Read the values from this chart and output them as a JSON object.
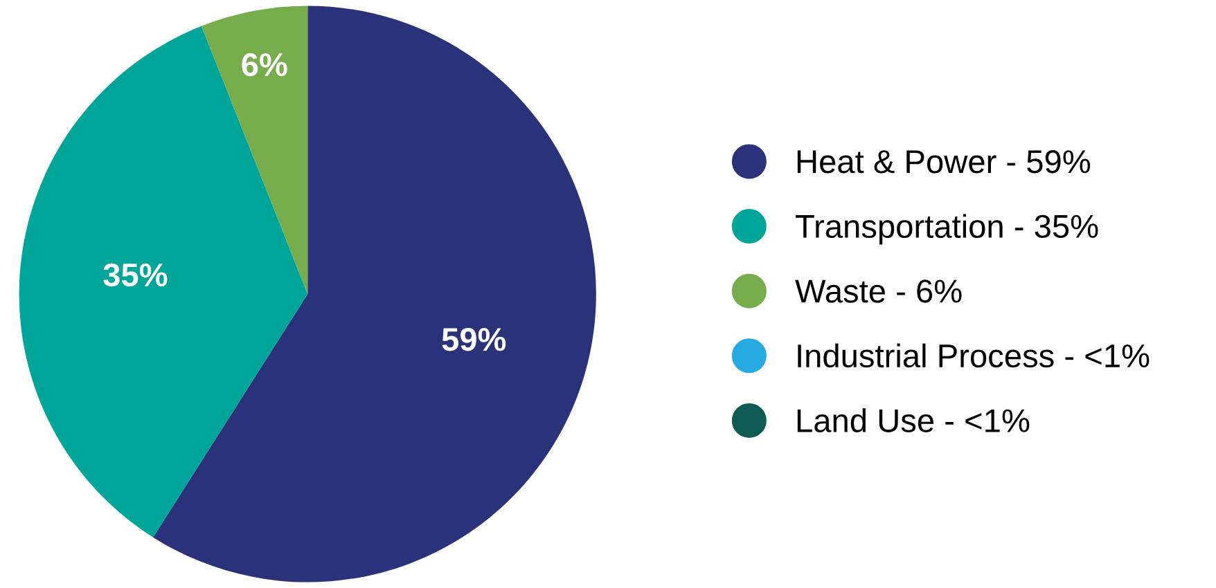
{
  "chart_data": {
    "type": "pie",
    "categories": [
      "Heat & Power - 59%",
      "Transportation - 35%",
      "Waste - 6%",
      "Industrial Process - <1%",
      "Land Use - <1%"
    ],
    "values": [
      59,
      35,
      6,
      0,
      0
    ],
    "value_labels": [
      "59%",
      "35%",
      "6%",
      null,
      null
    ],
    "colors": [
      "#2a327a",
      "#00a59a",
      "#76ac4c",
      "#27a9e1",
      "#0d5b52"
    ],
    "legend": "right"
  }
}
